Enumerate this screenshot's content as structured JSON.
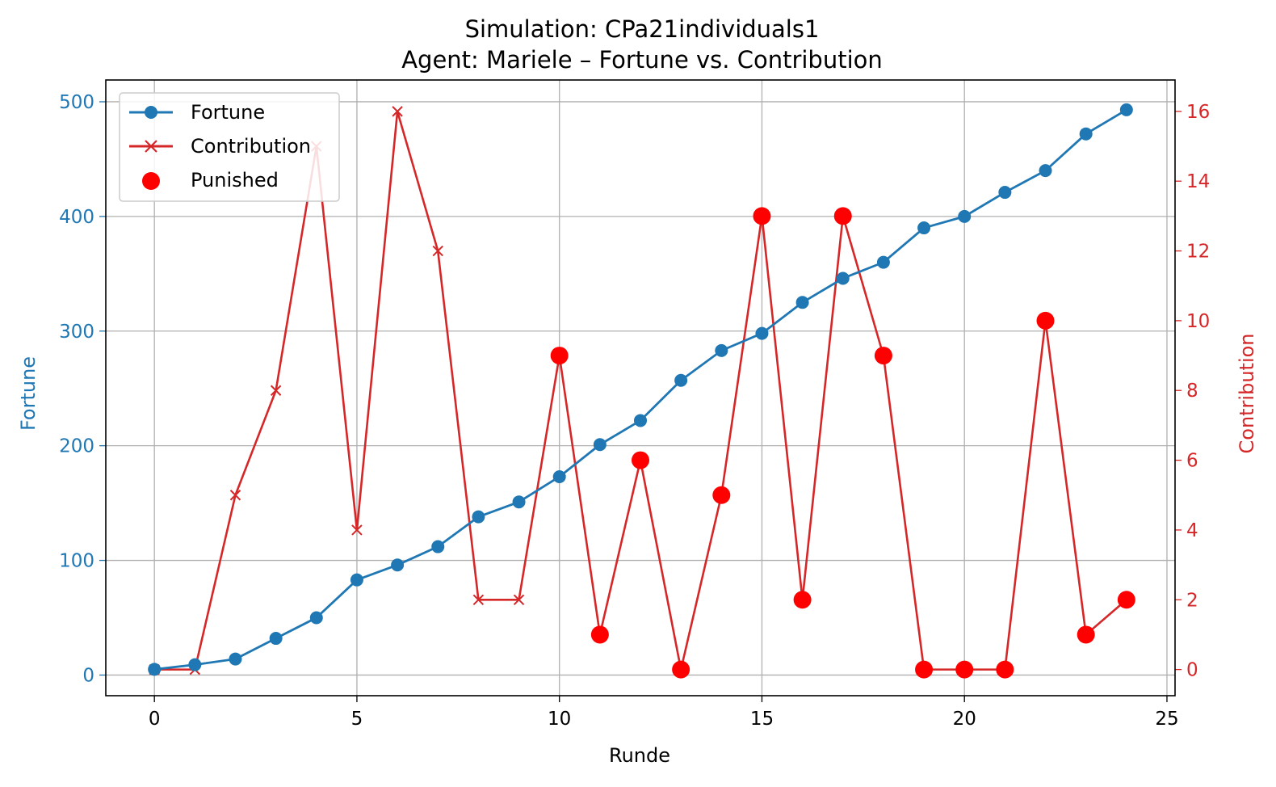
{
  "chart_data": {
    "type": "line",
    "title": "Simulation: CPa21individuals1",
    "subtitle": "Agent: Mariele – Fortune vs. Contribution",
    "xlabel": "Runde",
    "ylabel_left": "Fortune",
    "ylabel_right": "Contribution",
    "x": [
      0,
      1,
      2,
      3,
      4,
      5,
      6,
      7,
      8,
      9,
      10,
      11,
      12,
      13,
      14,
      15,
      16,
      17,
      18,
      19,
      20,
      21,
      22,
      23,
      24
    ],
    "xlim": [
      -1.2,
      25.2
    ],
    "ylim_left": [
      -18,
      519
    ],
    "ylim_right": [
      -0.75,
      16.9
    ],
    "x_ticks": [
      0,
      5,
      10,
      15,
      20,
      25
    ],
    "y_ticks_left": [
      0,
      100,
      200,
      300,
      400,
      500
    ],
    "y_ticks_right": [
      0,
      2,
      4,
      6,
      8,
      10,
      12,
      14,
      16
    ],
    "grid": true,
    "legend_position": "top-left",
    "series": [
      {
        "name": "Fortune",
        "axis": "left",
        "color": "#1f77b4",
        "marker": "circle",
        "values": [
          5,
          9,
          14,
          32,
          50,
          83,
          96,
          112,
          138,
          151,
          173,
          201,
          222,
          257,
          283,
          298,
          325,
          346,
          360,
          390,
          400,
          421,
          440,
          472,
          493
        ]
      },
      {
        "name": "Contribution",
        "axis": "right",
        "color": "#d62728",
        "marker": "x",
        "values": [
          0,
          0,
          5,
          8,
          15,
          4,
          16,
          12,
          2,
          2,
          9,
          1,
          6,
          0,
          5,
          13,
          2,
          13,
          9,
          0,
          0,
          0,
          10,
          1,
          2
        ]
      },
      {
        "name": "Punished",
        "axis": "right",
        "color": "#ff0000",
        "marker": "dot",
        "x": [
          10,
          11,
          12,
          13,
          14,
          15,
          16,
          17,
          18,
          19,
          20,
          21,
          22,
          23,
          24
        ],
        "values": [
          9,
          1,
          6,
          0,
          5,
          13,
          2,
          13,
          9,
          0,
          0,
          0,
          10,
          1,
          2
        ]
      }
    ],
    "colors": {
      "left_axis": "#1f77b4",
      "right_axis": "#d62728",
      "grid": "#b0b0b0"
    }
  }
}
